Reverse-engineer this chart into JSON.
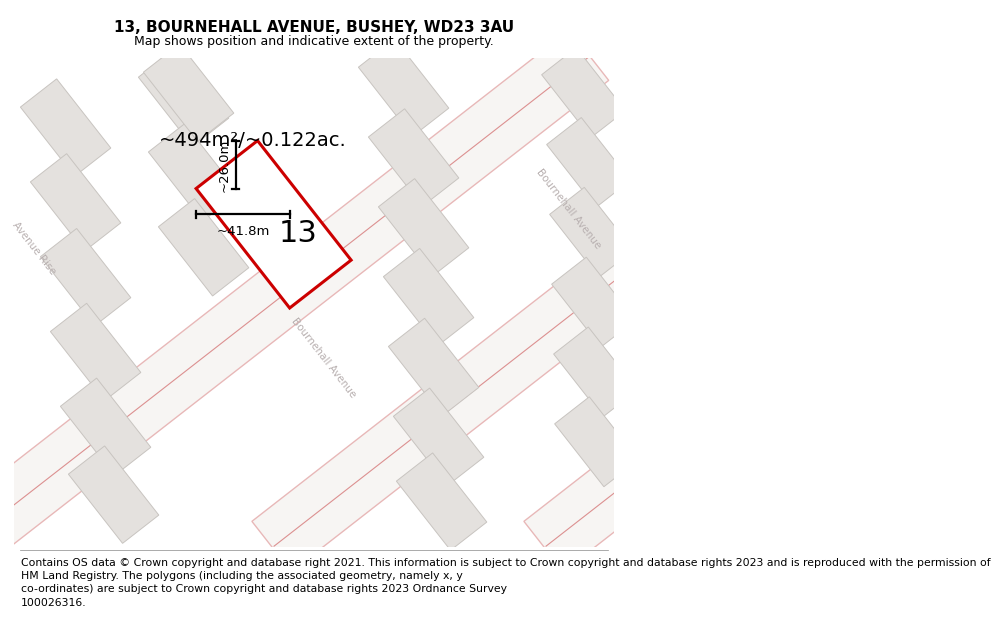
{
  "title": "13, BOURNEHALL AVENUE, BUSHEY, WD23 3AU",
  "subtitle": "Map shows position and indicative extent of the property.",
  "area_label": "~494m²/~0.122ac.",
  "plot_number": "13",
  "dim_width": "~41.8m",
  "dim_height": "~26.0m",
  "footer": "Contains OS data © Crown copyright and database right 2021. This information is subject to Crown copyright and database rights 2023 and is reproduced with the permission of\nHM Land Registry. The polygons (including the associated geometry, namely x, y\nco-ordinates) are subject to Crown copyright and database rights 2023 Ordnance Survey\n100026316.",
  "map_bg": "#f0eeec",
  "road_fill": "#f7f5f3",
  "road_edge": "#e8b8b8",
  "road_dashed": "#dc9090",
  "building_face": "#e4e1de",
  "building_edge": "#c8c4c0",
  "plot_edge": "#cc0000",
  "plot_face": "#ffffff",
  "street_color": "#b8b0b0",
  "title_fontsize": 11,
  "subtitle_fontsize": 9,
  "footer_fontsize": 7.8,
  "area_fontsize": 14,
  "plot_num_fontsize": 22,
  "dim_fontsize": 9.5
}
